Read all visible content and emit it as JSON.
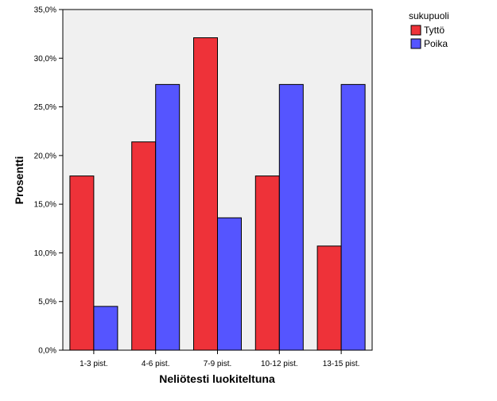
{
  "chart_data": {
    "type": "bar",
    "title": "",
    "xlabel": "Neliötesti luokiteltuna",
    "ylabel": "Prosentti",
    "categories": [
      "1-3 pist.",
      "4-6 pist.",
      "7-9 pist.",
      "10-12 pist.",
      "13-15 pist."
    ],
    "series": [
      {
        "name": "Tyttö",
        "color": "#ee3239",
        "values": [
          17.9,
          21.4,
          32.1,
          17.9,
          10.7
        ]
      },
      {
        "name": "Poika",
        "color": "#5555ff",
        "values": [
          4.5,
          27.3,
          13.6,
          27.3,
          27.3
        ]
      }
    ],
    "ylim": [
      0,
      35
    ],
    "yticks": [
      0,
      5,
      10,
      15,
      20,
      25,
      30,
      35
    ],
    "ytick_labels": [
      "0,0%",
      "5,0%",
      "10,0%",
      "15,0%",
      "20,0%",
      "25,0%",
      "30,0%",
      "35,0%"
    ],
    "grid": false,
    "plot_background": "#f0f0f0",
    "legend": {
      "title": "sukupuoli",
      "placement": "top-right, outside plot"
    }
  }
}
